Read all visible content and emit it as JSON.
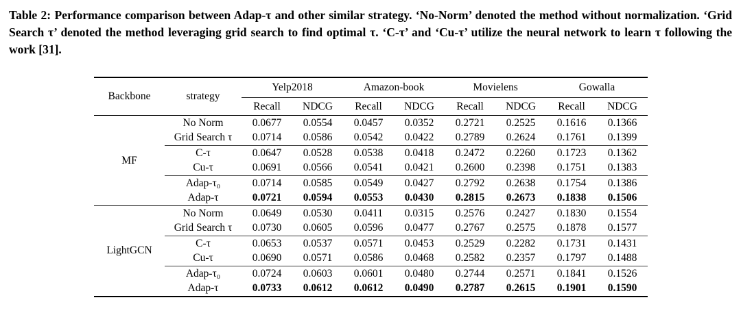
{
  "caption": {
    "text": "Table 2: Performance comparison between Adap-τ and other similar strategy. ‘No-Norm’ denoted the method without normalization. ‘Grid Search τ’ denoted the method leveraging grid search to find optimal τ. ‘C-τ’ and ‘Cu-τ’ utilize the neural network to learn τ following the work [31]."
  },
  "table": {
    "col_headers": {
      "backbone": "Backbone",
      "strategy": "strategy"
    },
    "dataset_groups": [
      {
        "name": "Yelp2018",
        "metrics": [
          "Recall",
          "NDCG"
        ]
      },
      {
        "name": "Amazon-book",
        "metrics": [
          "Recall",
          "NDCG"
        ]
      },
      {
        "name": "Movielens",
        "metrics": [
          "Recall",
          "NDCG"
        ]
      },
      {
        "name": "Gowalla",
        "metrics": [
          "Recall",
          "NDCG"
        ]
      }
    ],
    "blocks": [
      {
        "backbone": "MF",
        "rows": [
          {
            "strategy": "No Norm",
            "values": [
              "0.0677",
              "0.0554",
              "0.0457",
              "0.0352",
              "0.2721",
              "0.2525",
              "0.1616",
              "0.1366"
            ],
            "bold": false,
            "rule_after": false
          },
          {
            "strategy": "Grid Search τ",
            "values": [
              "0.0714",
              "0.0586",
              "0.0542",
              "0.0422",
              "0.2789",
              "0.2624",
              "0.1761",
              "0.1399"
            ],
            "bold": false,
            "rule_after": true
          },
          {
            "strategy": "C-τ",
            "values": [
              "0.0647",
              "0.0528",
              "0.0538",
              "0.0418",
              "0.2472",
              "0.2260",
              "0.1723",
              "0.1362"
            ],
            "bold": false,
            "rule_after": false
          },
          {
            "strategy": "Cu-τ",
            "values": [
              "0.0691",
              "0.0566",
              "0.0541",
              "0.0421",
              "0.2600",
              "0.2398",
              "0.1751",
              "0.1383"
            ],
            "bold": false,
            "rule_after": true
          },
          {
            "strategy": "Adap-τ₀",
            "values": [
              "0.0714",
              "0.0585",
              "0.0549",
              "0.0427",
              "0.2792",
              "0.2638",
              "0.1754",
              "0.1386"
            ],
            "bold": false,
            "rule_after": false
          },
          {
            "strategy": "Adap-τ",
            "values": [
              "0.0721",
              "0.0594",
              "0.0553",
              "0.0430",
              "0.2815",
              "0.2673",
              "0.1838",
              "0.1506"
            ],
            "bold": true,
            "rule_after": false
          }
        ]
      },
      {
        "backbone": "LightGCN",
        "rows": [
          {
            "strategy": "No Norm",
            "values": [
              "0.0649",
              "0.0530",
              "0.0411",
              "0.0315",
              "0.2576",
              "0.2427",
              "0.1830",
              "0.1554"
            ],
            "bold": false,
            "rule_after": false
          },
          {
            "strategy": "Grid Search τ",
            "values": [
              "0.0730",
              "0.0605",
              "0.0596",
              "0.0477",
              "0.2767",
              "0.2575",
              "0.1878",
              "0.1577"
            ],
            "bold": false,
            "rule_after": true
          },
          {
            "strategy": "C-τ",
            "values": [
              "0.0653",
              "0.0537",
              "0.0571",
              "0.0453",
              "0.2529",
              "0.2282",
              "0.1731",
              "0.1431"
            ],
            "bold": false,
            "rule_after": false
          },
          {
            "strategy": "Cu-τ",
            "values": [
              "0.0690",
              "0.0571",
              "0.0586",
              "0.0468",
              "0.2582",
              "0.2357",
              "0.1797",
              "0.1488"
            ],
            "bold": false,
            "rule_after": true
          },
          {
            "strategy": "Adap-τ₀",
            "values": [
              "0.0724",
              "0.0603",
              "0.0601",
              "0.0480",
              "0.2744",
              "0.2571",
              "0.1841",
              "0.1526"
            ],
            "bold": false,
            "rule_after": false
          },
          {
            "strategy": "Adap-τ",
            "values": [
              "0.0733",
              "0.0612",
              "0.0612",
              "0.0490",
              "0.2787",
              "0.2615",
              "0.1901",
              "0.1590"
            ],
            "bold": true,
            "rule_after": false
          }
        ]
      }
    ]
  }
}
